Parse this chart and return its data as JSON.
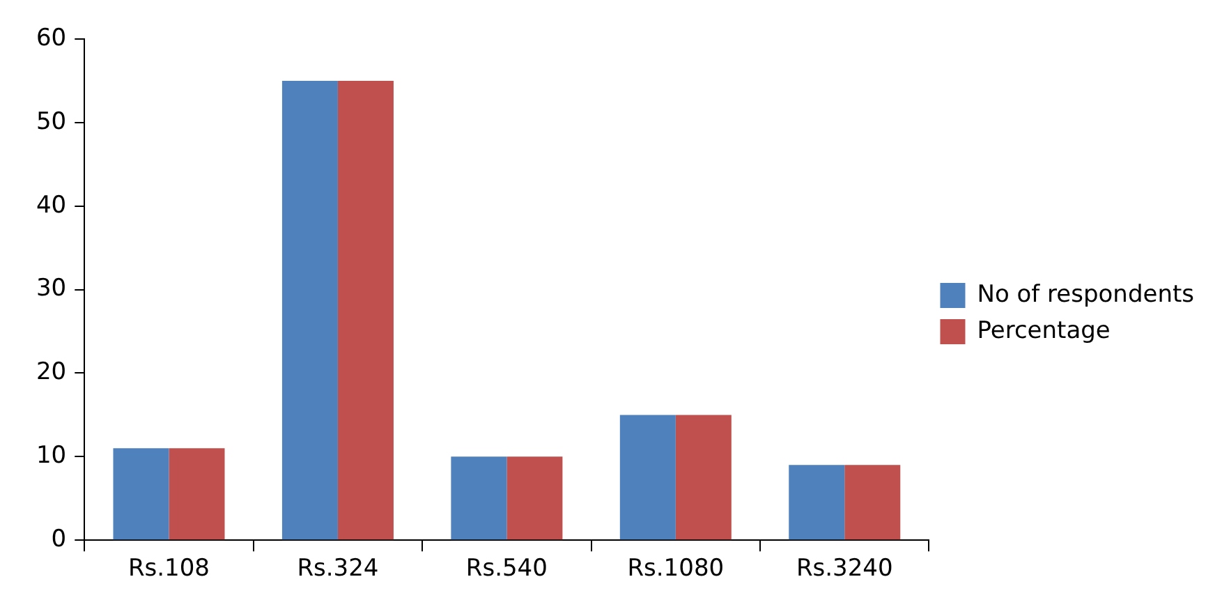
{
  "chart_data": {
    "type": "bar",
    "categories": [
      "Rs.108",
      "Rs.324",
      "Rs.540",
      "Rs.1080",
      "Rs.3240"
    ],
    "series": [
      {
        "name": "No of respondents",
        "color": "#4f81bd",
        "values": [
          11,
          55,
          10,
          15,
          9
        ]
      },
      {
        "name": "Percentage",
        "color": "#c0504d",
        "values": [
          11,
          55,
          10,
          15,
          9
        ]
      }
    ],
    "ylim": [
      0,
      60
    ],
    "yticks": [
      0,
      10,
      20,
      30,
      40,
      50,
      60
    ],
    "legend": "right"
  }
}
